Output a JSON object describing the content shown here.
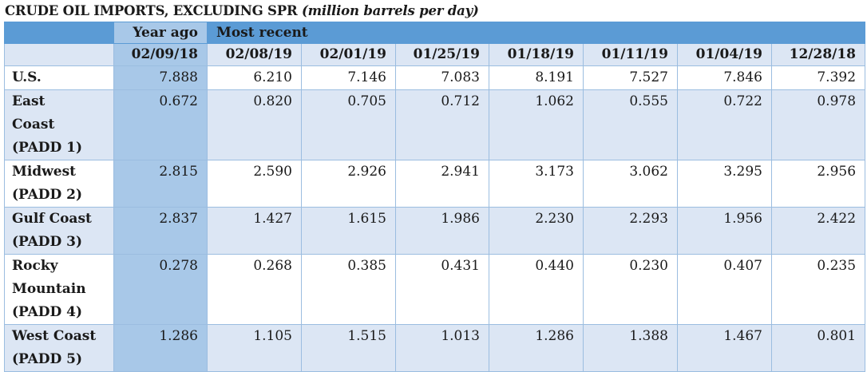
{
  "title": {
    "main": "CRUDE OIL IMPORTS, EXCLUDING SPR",
    "unit": "(million barrels per day)"
  },
  "header": {
    "year_ago_label": "Year ago",
    "most_recent_label": "Most recent",
    "dates": [
      "02/09/18",
      "02/08/19",
      "02/01/19",
      "01/25/19",
      "01/18/19",
      "01/11/19",
      "01/04/19",
      "12/28/18"
    ]
  },
  "rows": [
    {
      "label": "U.S.",
      "values": [
        "7.888",
        "6.210",
        "7.146",
        "7.083",
        "8.191",
        "7.527",
        "7.846",
        "7.392"
      ]
    },
    {
      "label": "East Coast (PADD 1)",
      "values": [
        "0.672",
        "0.820",
        "0.705",
        "0.712",
        "1.062",
        "0.555",
        "0.722",
        "0.978"
      ]
    },
    {
      "label": "Midwest (PADD 2)",
      "values": [
        "2.815",
        "2.590",
        "2.926",
        "2.941",
        "3.173",
        "3.062",
        "3.295",
        "2.956"
      ]
    },
    {
      "label": "Gulf Coast (PADD 3)",
      "values": [
        "2.837",
        "1.427",
        "1.615",
        "1.986",
        "2.230",
        "2.293",
        "1.956",
        "2.422"
      ]
    },
    {
      "label": "Rocky Mountain (PADD 4)",
      "values": [
        "0.278",
        "0.268",
        "0.385",
        "0.431",
        "0.440",
        "0.230",
        "0.407",
        "0.235"
      ]
    },
    {
      "label": "West Coast (PADD 5)",
      "values": [
        "1.286",
        "1.105",
        "1.515",
        "1.013",
        "1.286",
        "1.388",
        "1.467",
        "0.801"
      ]
    }
  ]
}
